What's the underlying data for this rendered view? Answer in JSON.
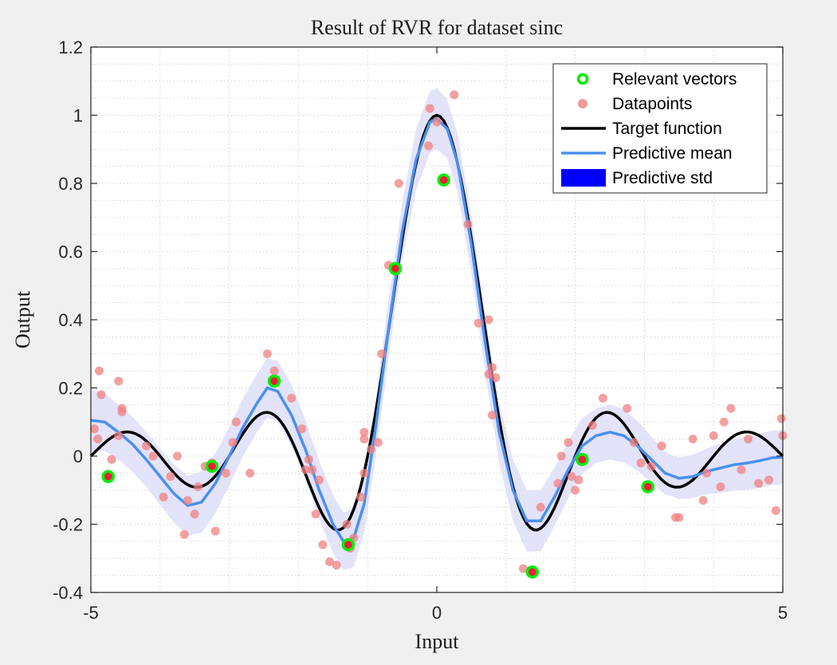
{
  "chart_data": {
    "type": "scatter",
    "title": "Result of RVR for dataset sinc",
    "xlabel": "Input",
    "ylabel": "Output",
    "xlim": [
      -5,
      5
    ],
    "ylim": [
      -0.4,
      1.2
    ],
    "xticks": [
      -5,
      0,
      5
    ],
    "xtick_labels": [
      "-5",
      "0",
      "5"
    ],
    "yticks": [
      -0.4,
      -0.2,
      0,
      0.2,
      0.4,
      0.6,
      0.8,
      1,
      1.2
    ],
    "ytick_labels": [
      "-0.4",
      "-0.2",
      "0",
      "0.2",
      "0.4",
      "0.6",
      "0.8",
      "1",
      "1.2"
    ],
    "grid": "minor dotted",
    "legend_position": "top-right",
    "legend": [
      {
        "label": "Relevant vectors",
        "kind": "ring",
        "color": "#00ee00"
      },
      {
        "label": "Datapoints",
        "kind": "dot",
        "color": "#f08080"
      },
      {
        "label": "Target function",
        "kind": "line",
        "color": "#000000"
      },
      {
        "label": "Predictive mean",
        "kind": "line",
        "color": "#4a90f0"
      },
      {
        "label": "Predictive std",
        "kind": "patch",
        "color": "#0000ff"
      }
    ],
    "series": [
      {
        "name": "Datapoints",
        "color": "#f08080",
        "points": [
          [
            -4.95,
            0.08
          ],
          [
            -4.9,
            0.05
          ],
          [
            -4.88,
            0.25
          ],
          [
            -4.85,
            0.18
          ],
          [
            -4.7,
            -0.01
          ],
          [
            -4.6,
            0.22
          ],
          [
            -4.55,
            0.13
          ],
          [
            -4.55,
            0.14
          ],
          [
            -4.6,
            0.06
          ],
          [
            -4.2,
            0.03
          ],
          [
            -4.1,
            0.0
          ],
          [
            -3.95,
            -0.12
          ],
          [
            -3.85,
            -0.06
          ],
          [
            -3.75,
            0.0
          ],
          [
            -3.65,
            -0.23
          ],
          [
            -3.6,
            -0.13
          ],
          [
            -3.5,
            -0.17
          ],
          [
            -3.45,
            -0.09
          ],
          [
            -3.35,
            -0.03
          ],
          [
            -3.25,
            -0.02
          ],
          [
            -3.2,
            -0.22
          ],
          [
            -3.05,
            -0.05
          ],
          [
            -2.95,
            0.04
          ],
          [
            -2.9,
            0.1
          ],
          [
            -2.7,
            -0.05
          ],
          [
            -2.45,
            0.3
          ],
          [
            -2.35,
            0.25
          ],
          [
            -2.1,
            0.17
          ],
          [
            -1.95,
            0.08
          ],
          [
            -1.9,
            -0.04
          ],
          [
            -1.85,
            -0.01
          ],
          [
            -1.8,
            -0.04
          ],
          [
            -1.75,
            -0.17
          ],
          [
            -1.7,
            -0.07
          ],
          [
            -1.65,
            -0.26
          ],
          [
            -1.55,
            -0.31
          ],
          [
            -1.45,
            -0.32
          ],
          [
            -1.3,
            -0.2
          ],
          [
            -1.25,
            -0.27
          ],
          [
            -1.2,
            -0.24
          ],
          [
            -1.1,
            -0.12
          ],
          [
            -1.05,
            -0.05
          ],
          [
            -1.05,
            0.05
          ],
          [
            -1.05,
            0.07
          ],
          [
            -0.95,
            0.02
          ],
          [
            -0.85,
            0.04
          ],
          [
            -0.8,
            0.3
          ],
          [
            -0.7,
            0.56
          ],
          [
            -0.55,
            0.8
          ],
          [
            -0.1,
            1.02
          ],
          [
            -0.12,
            0.91
          ],
          [
            0.0,
            0.98
          ],
          [
            0.25,
            1.06
          ],
          [
            0.45,
            0.68
          ],
          [
            0.6,
            0.39
          ],
          [
            0.75,
            0.4
          ],
          [
            0.75,
            0.24
          ],
          [
            0.8,
            0.12
          ],
          [
            0.8,
            0.26
          ],
          [
            0.85,
            0.23
          ],
          [
            1.25,
            -0.33
          ],
          [
            1.5,
            -0.15
          ],
          [
            1.75,
            -0.08
          ],
          [
            1.8,
            0.0
          ],
          [
            1.9,
            0.04
          ],
          [
            1.95,
            -0.06
          ],
          [
            2.0,
            -0.1
          ],
          [
            2.05,
            -0.07
          ],
          [
            2.1,
            -0.01
          ],
          [
            2.25,
            0.09
          ],
          [
            2.4,
            0.17
          ],
          [
            2.75,
            0.14
          ],
          [
            2.85,
            0.04
          ],
          [
            2.95,
            -0.02
          ],
          [
            3.05,
            -0.09
          ],
          [
            3.1,
            -0.03
          ],
          [
            3.25,
            0.03
          ],
          [
            3.45,
            -0.18
          ],
          [
            3.5,
            -0.18
          ],
          [
            3.7,
            0.05
          ],
          [
            3.85,
            -0.13
          ],
          [
            3.9,
            -0.05
          ],
          [
            4.0,
            0.06
          ],
          [
            4.1,
            -0.09
          ],
          [
            4.15,
            0.1
          ],
          [
            4.25,
            0.14
          ],
          [
            4.4,
            -0.04
          ],
          [
            4.5,
            0.05
          ],
          [
            4.65,
            -0.08
          ],
          [
            4.8,
            -0.07
          ],
          [
            4.9,
            -0.16
          ],
          [
            5.0,
            0.06
          ],
          [
            4.98,
            0.11
          ]
        ]
      },
      {
        "name": "Relevant vectors",
        "color": "#00ee00",
        "points": [
          [
            -4.75,
            -0.06
          ],
          [
            -3.25,
            -0.03
          ],
          [
            -2.35,
            0.22
          ],
          [
            -1.28,
            -0.26
          ],
          [
            -0.6,
            0.55
          ],
          [
            0.1,
            0.81
          ],
          [
            1.38,
            -0.34
          ],
          [
            2.1,
            -0.01
          ],
          [
            3.05,
            -0.09
          ]
        ]
      },
      {
        "name": "Target function",
        "color": "#000000",
        "function": "sin(pi*x)/(pi*x)"
      },
      {
        "name": "Predictive mean",
        "color": "#4a90f0",
        "points": [
          [
            -5.0,
            0.105
          ],
          [
            -4.8,
            0.1
          ],
          [
            -4.6,
            0.07
          ],
          [
            -4.4,
            0.035
          ],
          [
            -4.2,
            -0.01
          ],
          [
            -4.0,
            -0.06
          ],
          [
            -3.8,
            -0.11
          ],
          [
            -3.6,
            -0.145
          ],
          [
            -3.4,
            -0.135
          ],
          [
            -3.2,
            -0.08
          ],
          [
            -3.0,
            0.0
          ],
          [
            -2.8,
            0.085
          ],
          [
            -2.6,
            0.155
          ],
          [
            -2.45,
            0.2
          ],
          [
            -2.3,
            0.19
          ],
          [
            -2.1,
            0.12
          ],
          [
            -1.9,
            0.02
          ],
          [
            -1.7,
            -0.1
          ],
          [
            -1.5,
            -0.2
          ],
          [
            -1.35,
            -0.25
          ],
          [
            -1.2,
            -0.24
          ],
          [
            -1.05,
            -0.14
          ],
          [
            -0.9,
            0.06
          ],
          [
            -0.7,
            0.37
          ],
          [
            -0.5,
            0.66
          ],
          [
            -0.3,
            0.87
          ],
          [
            -0.1,
            0.98
          ],
          [
            0.0,
            0.99
          ],
          [
            0.15,
            0.96
          ],
          [
            0.3,
            0.86
          ],
          [
            0.5,
            0.62
          ],
          [
            0.7,
            0.33
          ],
          [
            0.9,
            0.07
          ],
          [
            1.1,
            -0.1
          ],
          [
            1.3,
            -0.19
          ],
          [
            1.5,
            -0.19
          ],
          [
            1.7,
            -0.12
          ],
          [
            1.9,
            -0.04
          ],
          [
            2.1,
            0.03
          ],
          [
            2.3,
            0.06
          ],
          [
            2.5,
            0.07
          ],
          [
            2.7,
            0.06
          ],
          [
            2.9,
            0.03
          ],
          [
            3.1,
            -0.01
          ],
          [
            3.3,
            -0.05
          ],
          [
            3.5,
            -0.065
          ],
          [
            3.7,
            -0.06
          ],
          [
            3.9,
            -0.045
          ],
          [
            4.1,
            -0.035
          ],
          [
            4.3,
            -0.025
          ],
          [
            4.5,
            -0.02
          ],
          [
            4.7,
            -0.012
          ],
          [
            4.85,
            -0.005
          ],
          [
            5.0,
            -0.003
          ]
        ]
      },
      {
        "name": "Predictive std",
        "color": "#0000ff",
        "band_halfwidth": [
          [
            -5.0,
            0.09
          ],
          [
            -4.6,
            0.08
          ],
          [
            -4.2,
            0.08
          ],
          [
            -3.8,
            0.085
          ],
          [
            -3.4,
            0.09
          ],
          [
            -3.0,
            0.085
          ],
          [
            -2.6,
            0.085
          ],
          [
            -2.2,
            0.09
          ],
          [
            -1.8,
            0.085
          ],
          [
            -1.4,
            0.085
          ],
          [
            -1.0,
            0.085
          ],
          [
            -0.6,
            0.085
          ],
          [
            -0.2,
            0.09
          ],
          [
            0.0,
            0.09
          ],
          [
            0.2,
            0.085
          ],
          [
            0.6,
            0.085
          ],
          [
            1.0,
            0.09
          ],
          [
            1.4,
            0.09
          ],
          [
            1.8,
            0.085
          ],
          [
            2.2,
            0.08
          ],
          [
            2.6,
            0.08
          ],
          [
            3.0,
            0.07
          ],
          [
            3.4,
            0.06
          ],
          [
            3.8,
            0.065
          ],
          [
            4.2,
            0.075
          ],
          [
            4.6,
            0.08
          ],
          [
            5.0,
            0.08
          ]
        ]
      }
    ]
  }
}
